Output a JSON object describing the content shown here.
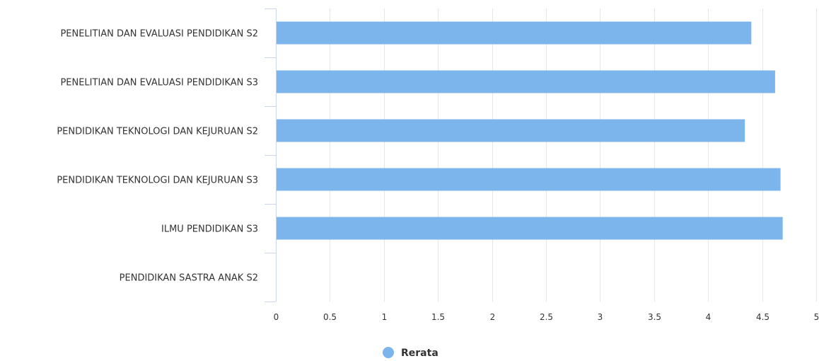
{
  "chart_data": {
    "type": "bar",
    "orientation": "horizontal",
    "categories": [
      "PENELITIAN DAN EVALUASI PENDIDIKAN S2",
      "PENELITIAN DAN EVALUASI PENDIDIKAN S3",
      "PENDIDIKAN TEKNOLOGI DAN KEJURUAN S2",
      "PENDIDIKAN TEKNOLOGI DAN KEJURUAN S3",
      "ILMU PENDIDIKAN S3",
      "PENDIDIKAN SASTRA ANAK S2"
    ],
    "series": [
      {
        "name": "Rerata",
        "color": "#7cb5ec",
        "values": [
          4.4,
          4.62,
          4.34,
          4.67,
          4.69,
          null
        ]
      }
    ],
    "xlim": [
      0,
      5
    ],
    "xticks": [
      "0",
      "0.5",
      "1",
      "1.5",
      "2",
      "2.5",
      "3",
      "3.5",
      "4",
      "4.5",
      "5"
    ],
    "title": "",
    "xlabel": "",
    "ylabel": "",
    "grid": true,
    "legend": "bottom-center"
  }
}
